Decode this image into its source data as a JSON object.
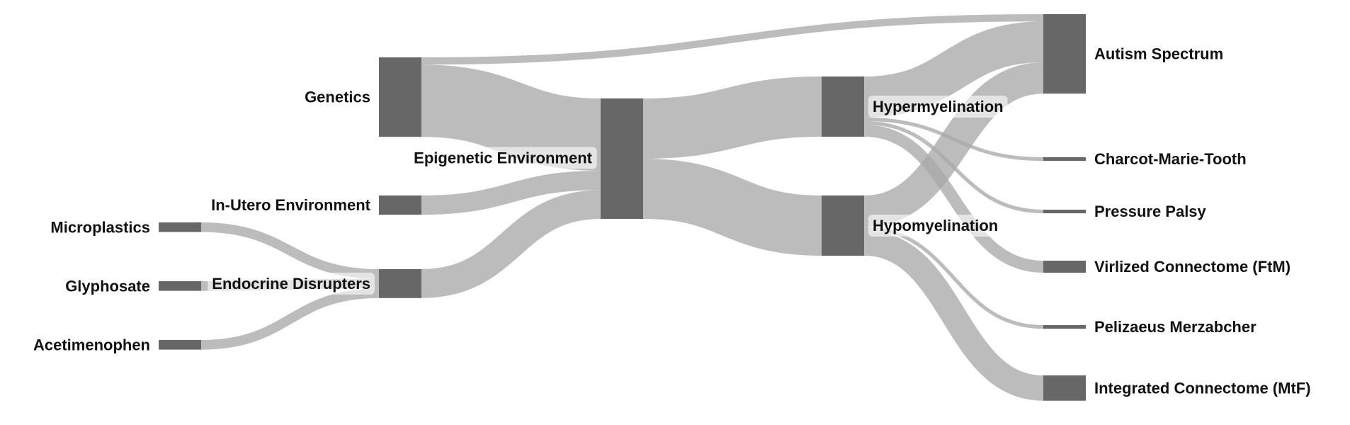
{
  "chart_data": {
    "type": "sankey",
    "nodes": [
      {
        "id": "microplastics",
        "label": "Microplastics"
      },
      {
        "id": "glyphosate",
        "label": "Glyphosate"
      },
      {
        "id": "acetimenophen",
        "label": "Acetimenophen"
      },
      {
        "id": "genetics",
        "label": "Genetics"
      },
      {
        "id": "in-utero-environment",
        "label": "In-Utero Environment"
      },
      {
        "id": "endocrine-disrupters",
        "label": "Endocrine Disrupters"
      },
      {
        "id": "epigenetic-environment",
        "label": "Epigenetic Environment"
      },
      {
        "id": "hypermyelination",
        "label": "Hypermyelination"
      },
      {
        "id": "hypomyelination",
        "label": "Hypomyelination"
      },
      {
        "id": "autism-spectrum",
        "label": "Autism Spectrum"
      },
      {
        "id": "charcot-marie-tooth",
        "label": "Charcot-Marie-Tooth"
      },
      {
        "id": "pressure-palsy",
        "label": "Pressure Palsy"
      },
      {
        "id": "virlized-connectome-ftm",
        "label": "Virlized Connectome (FtM)"
      },
      {
        "id": "pelizaeus-merzabcher",
        "label": "Pelizaeus Merzabcher"
      },
      {
        "id": "integrated-connectome-mtf",
        "label": "Integrated Connectome (MtF)"
      }
    ],
    "links": [
      {
        "source": "microplastics",
        "target": "endocrine-disrupters",
        "value": 4
      },
      {
        "source": "glyphosate",
        "target": "endocrine-disrupters",
        "value": 4
      },
      {
        "source": "acetimenophen",
        "target": "endocrine-disrupters",
        "value": 4
      },
      {
        "source": "genetics",
        "target": "autism-spectrum",
        "value": 3
      },
      {
        "source": "genetics",
        "target": "epigenetic-environment",
        "value": 30
      },
      {
        "source": "in-utero-environment",
        "target": "epigenetic-environment",
        "value": 8
      },
      {
        "source": "endocrine-disrupters",
        "target": "epigenetic-environment",
        "value": 12
      },
      {
        "source": "epigenetic-environment",
        "target": "hypermyelination",
        "value": 25
      },
      {
        "source": "epigenetic-environment",
        "target": "hypomyelination",
        "value": 25
      },
      {
        "source": "hypermyelination",
        "target": "autism-spectrum",
        "value": 17
      },
      {
        "source": "hypermyelination",
        "target": "charcot-marie-tooth",
        "value": 1.5
      },
      {
        "source": "hypermyelination",
        "target": "pressure-palsy",
        "value": 1.5
      },
      {
        "source": "hypermyelination",
        "target": "virlized-connectome-ftm",
        "value": 5
      },
      {
        "source": "hypomyelination",
        "target": "autism-spectrum",
        "value": 13
      },
      {
        "source": "hypomyelination",
        "target": "pelizaeus-merzabcher",
        "value": 1.5
      },
      {
        "source": "hypomyelination",
        "target": "integrated-connectome-mtf",
        "value": 10.5
      }
    ]
  }
}
